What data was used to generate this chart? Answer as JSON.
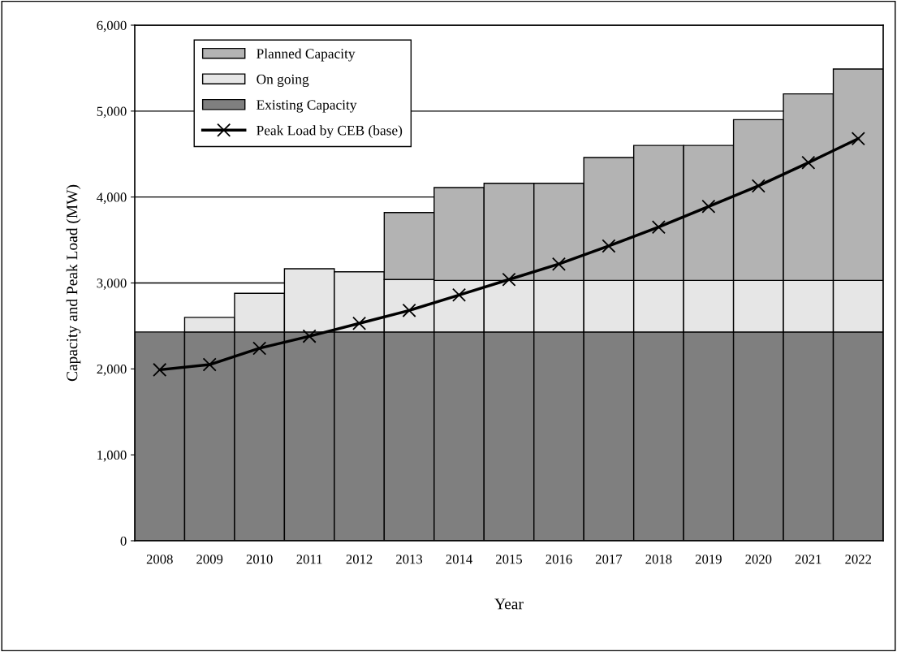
{
  "chart_data": {
    "type": "bar",
    "stacked": true,
    "xlabel": "Year",
    "ylabel": "Capacity and Peak Load (MW)",
    "categories": [
      "2008",
      "2009",
      "2010",
      "2011",
      "2012",
      "2013",
      "2014",
      "2015",
      "2016",
      "2017",
      "2018",
      "2019",
      "2020",
      "2021",
      "2022"
    ],
    "series": [
      {
        "name": "Existing Capacity",
        "color": "#7f7f7f",
        "values": [
          2430,
          2430,
          2430,
          2430,
          2430,
          2430,
          2430,
          2430,
          2430,
          2430,
          2430,
          2430,
          2430,
          2430,
          2430
        ]
      },
      {
        "name": "On going",
        "color": "#e6e6e6",
        "values": [
          null,
          170,
          450,
          735,
          700,
          610,
          600,
          600,
          600,
          600,
          600,
          600,
          600,
          600,
          600
        ]
      },
      {
        "name": "Planned Capacity",
        "color": "#b3b3b3",
        "values": [
          null,
          null,
          null,
          null,
          null,
          780,
          1080,
          1130,
          1130,
          1430,
          1570,
          1570,
          1870,
          2170,
          2460
        ]
      },
      {
        "name": "Peak Load by CEB (base)",
        "type": "line",
        "color": "#000000",
        "marker": "cross",
        "values": [
          1990,
          2050,
          2240,
          2380,
          2530,
          2680,
          2860,
          3040,
          3220,
          3430,
          3650,
          3890,
          4130,
          4400,
          4680
        ]
      }
    ],
    "ylim": [
      0,
      6000
    ],
    "yticks": [
      {
        "value": 0,
        "label": "0"
      },
      {
        "value": 1000,
        "label": "1,000"
      },
      {
        "value": 2000,
        "label": "2,000"
      },
      {
        "value": 3000,
        "label": "3,000"
      },
      {
        "value": 4000,
        "label": "4,000"
      },
      {
        "value": 5000,
        "label": "5,000"
      },
      {
        "value": 6000,
        "label": "6,000"
      }
    ],
    "grid": "y",
    "legend": "top left"
  }
}
